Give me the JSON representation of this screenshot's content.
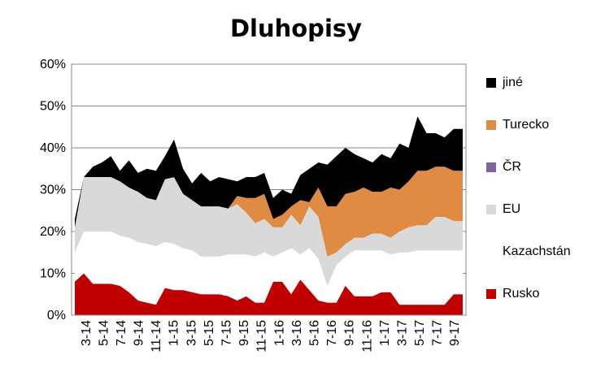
{
  "chart_data": {
    "type": "area",
    "stacked": true,
    "title": "Dluhopisy",
    "xlabel": "",
    "ylabel": "",
    "ylim": [
      0,
      0.6
    ],
    "y_tick_labels": [
      "0%",
      "10%",
      "20%",
      "30%",
      "40%",
      "50%",
      "60%"
    ],
    "x_tick_labels": [
      "3-14",
      "5-14",
      "7-14",
      "9-14",
      "11-14",
      "1-15",
      "3-15",
      "5-15",
      "7-15",
      "9-15",
      "11-15",
      "1-16",
      "3-16",
      "5-16",
      "7-16",
      "9-16",
      "11-16",
      "1-17",
      "3-17",
      "5-17",
      "7-17",
      "9-17"
    ],
    "grid": "horizontal",
    "legend_position": "right",
    "x": [
      "3-14",
      "4-14",
      "5-14",
      "6-14",
      "7-14",
      "8-14",
      "9-14",
      "10-14",
      "11-14",
      "12-14",
      "1-15",
      "2-15",
      "3-15",
      "4-15",
      "5-15",
      "6-15",
      "7-15",
      "8-15",
      "9-15",
      "10-15",
      "11-15",
      "12-15",
      "1-16",
      "2-16",
      "3-16",
      "4-16",
      "5-16",
      "6-16",
      "7-16",
      "8-16",
      "9-16",
      "10-16",
      "11-16",
      "12-16",
      "1-17",
      "2-17",
      "3-17",
      "4-17",
      "5-17",
      "6-17",
      "7-17",
      "8-17",
      "9-17",
      "10-17"
    ],
    "series": [
      {
        "name": "Rusko",
        "color": "#C00000",
        "values": [
          0.08,
          0.1,
          0.075,
          0.075,
          0.075,
          0.07,
          0.055,
          0.035,
          0.03,
          0.025,
          0.065,
          0.06,
          0.06,
          0.055,
          0.05,
          0.05,
          0.05,
          0.045,
          0.035,
          0.045,
          0.03,
          0.03,
          0.08,
          0.08,
          0.05,
          0.085,
          0.06,
          0.035,
          0.03,
          0.03,
          0.07,
          0.045,
          0.045,
          0.045,
          0.055,
          0.055,
          0.025,
          0.025,
          0.025,
          0.025,
          0.025,
          0.025,
          0.05,
          0.05
        ]
      },
      {
        "name": "Kazachstán",
        "color": "#FFFFFF",
        "values": [
          0.07,
          0.1,
          0.125,
          0.125,
          0.125,
          0.12,
          0.13,
          0.14,
          0.14,
          0.14,
          0.11,
          0.11,
          0.1,
          0.1,
          0.09,
          0.09,
          0.09,
          0.1,
          0.11,
          0.1,
          0.11,
          0.12,
          0.06,
          0.07,
          0.11,
          0.06,
          0.1,
          0.1,
          0.04,
          0.09,
          0.07,
          0.11,
          0.11,
          0.11,
          0.1,
          0.09,
          0.125,
          0.125,
          0.13,
          0.13,
          0.13,
          0.13,
          0.105,
          0.105
        ]
      },
      {
        "name": "EU",
        "color": "#D9D9D9",
        "values": [
          0.06,
          0.13,
          0.13,
          0.13,
          0.13,
          0.13,
          0.12,
          0.12,
          0.11,
          0.11,
          0.15,
          0.16,
          0.13,
          0.12,
          0.12,
          0.12,
          0.12,
          0.11,
          0.12,
          0.1,
          0.08,
          0.08,
          0.07,
          0.06,
          0.08,
          0.07,
          0.1,
          0.1,
          0.07,
          0.03,
          0.03,
          0.03,
          0.03,
          0.04,
          0.04,
          0.04,
          0.05,
          0.06,
          0.06,
          0.06,
          0.08,
          0.08,
          0.07,
          0.07
        ]
      },
      {
        "name": "ČR",
        "color": "#8064A2",
        "values": [
          0,
          0,
          0,
          0,
          0,
          0,
          0,
          0,
          0,
          0,
          0,
          0,
          0,
          0,
          0,
          0,
          0,
          0,
          0,
          0,
          0,
          0,
          0,
          0,
          0,
          0,
          0,
          0,
          0,
          0,
          0,
          0,
          0,
          0,
          0,
          0,
          0,
          0,
          0,
          0,
          0,
          0,
          0,
          0
        ]
      },
      {
        "name": "Turecko",
        "color": "#E08B44",
        "values": [
          0,
          0,
          0,
          0,
          0,
          0,
          0,
          0,
          0,
          0,
          0,
          0,
          0,
          0,
          0,
          0,
          0,
          0,
          0.02,
          0.035,
          0.06,
          0.06,
          0.02,
          0.03,
          0.02,
          0.06,
          0.01,
          0.07,
          0.12,
          0.11,
          0.12,
          0.11,
          0.12,
          0.1,
          0.1,
          0.12,
          0.1,
          0.11,
          0.13,
          0.13,
          0.12,
          0.12,
          0.12,
          0.12
        ]
      },
      {
        "name": "jiné",
        "color": "#000000",
        "values": [
          0.02,
          0,
          0.025,
          0.035,
          0.05,
          0.025,
          0.065,
          0.045,
          0.07,
          0.07,
          0.055,
          0.09,
          0.06,
          0.04,
          0.08,
          0.06,
          0.07,
          0.07,
          0.035,
          0.05,
          0.05,
          0.05,
          0.05,
          0.06,
          0.03,
          0.06,
          0.08,
          0.06,
          0.1,
          0.12,
          0.11,
          0.09,
          0.07,
          0.07,
          0.09,
          0.07,
          0.11,
          0.08,
          0.13,
          0.09,
          0.08,
          0.07,
          0.1,
          0.1
        ]
      }
    ],
    "legend_order": [
      "jiné",
      "Turecko",
      "ČR",
      "EU",
      "Kazachstán",
      "Rusko"
    ]
  }
}
